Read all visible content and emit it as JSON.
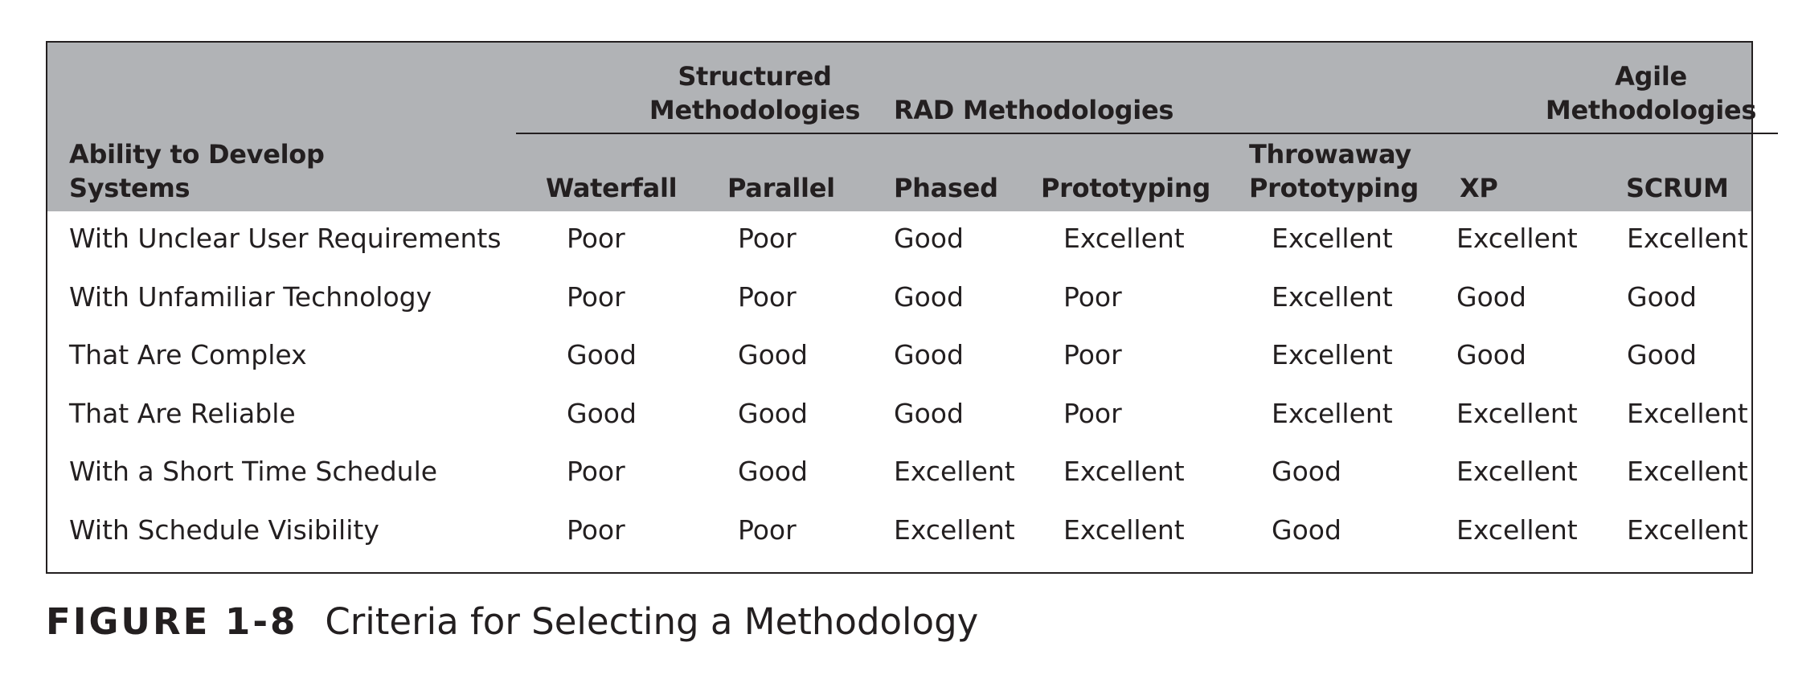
{
  "table": {
    "row_header_title": "Ability to Develop\nSystems",
    "groups": [
      {
        "label": "Structured\nMethodologies"
      },
      {
        "label": "RAD Methodologies"
      },
      {
        "label": "Agile\nMethodologies"
      }
    ],
    "columns": [
      "Waterfall",
      "Parallel",
      "Phased",
      "Prototyping",
      "Throwaway\nPrototyping",
      "XP",
      "SCRUM"
    ],
    "rows": [
      {
        "label": "With Unclear User Requirements",
        "values": [
          "Poor",
          "Poor",
          "Good",
          "Excellent",
          "Excellent",
          "Excellent",
          "Excellent"
        ]
      },
      {
        "label": "With Unfamiliar Technology",
        "values": [
          "Poor",
          "Poor",
          "Good",
          "Poor",
          "Excellent",
          "Good",
          "Good"
        ]
      },
      {
        "label": "That Are Complex",
        "values": [
          "Good",
          "Good",
          "Good",
          "Poor",
          "Excellent",
          "Good",
          "Good"
        ]
      },
      {
        "label": "That Are Reliable",
        "values": [
          "Good",
          "Good",
          "Good",
          "Poor",
          "Excellent",
          "Excellent",
          "Excellent"
        ]
      },
      {
        "label": "With a Short Time Schedule",
        "values": [
          "Poor",
          "Good",
          "Excellent",
          "Excellent",
          "Good",
          "Excellent",
          "Excellent"
        ]
      },
      {
        "label": "With Schedule Visibility",
        "values": [
          "Poor",
          "Poor",
          "Excellent",
          "Excellent",
          "Good",
          "Excellent",
          "Excellent"
        ]
      }
    ]
  },
  "figure": {
    "label": "FIGURE 1-8",
    "caption": "Criteria for Selecting a Methodology"
  },
  "colors": {
    "header_band": "#b1b3b6",
    "text": "#231f20",
    "border": "#231f20"
  }
}
